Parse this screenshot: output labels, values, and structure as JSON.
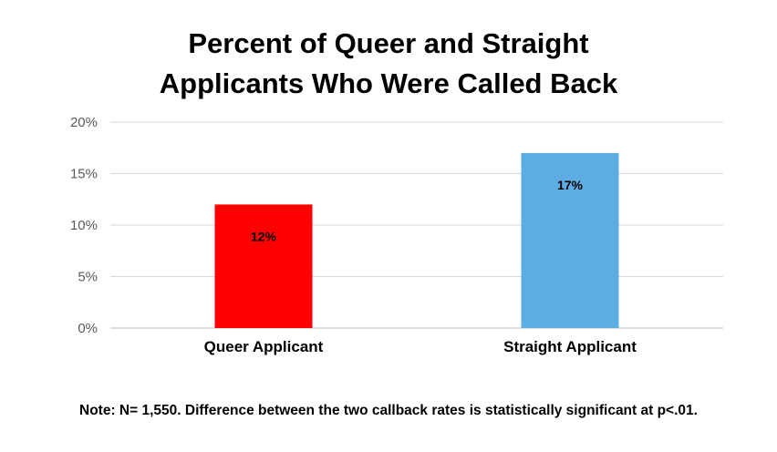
{
  "chart_data": {
    "type": "bar",
    "title_lines": [
      "Percent of Queer and Straight",
      "Applicants Who Were Called Back"
    ],
    "categories": [
      "Queer Applicant",
      "Straight Applicant"
    ],
    "values": [
      12,
      17
    ],
    "data_labels": [
      "12%",
      "17%"
    ],
    "bar_colors": [
      "#ff0000",
      "#5dade2"
    ],
    "y_ticks": [
      0,
      5,
      10,
      15,
      20
    ],
    "y_tick_labels": [
      "0%",
      "5%",
      "10%",
      "15%",
      "20%"
    ],
    "ylim": [
      0,
      20
    ],
    "grid": true,
    "legend": "none",
    "xlabel": "",
    "ylabel": ""
  },
  "note": "Note: N= 1,550. Difference between the two callback rates is statistically significant at p<.01."
}
